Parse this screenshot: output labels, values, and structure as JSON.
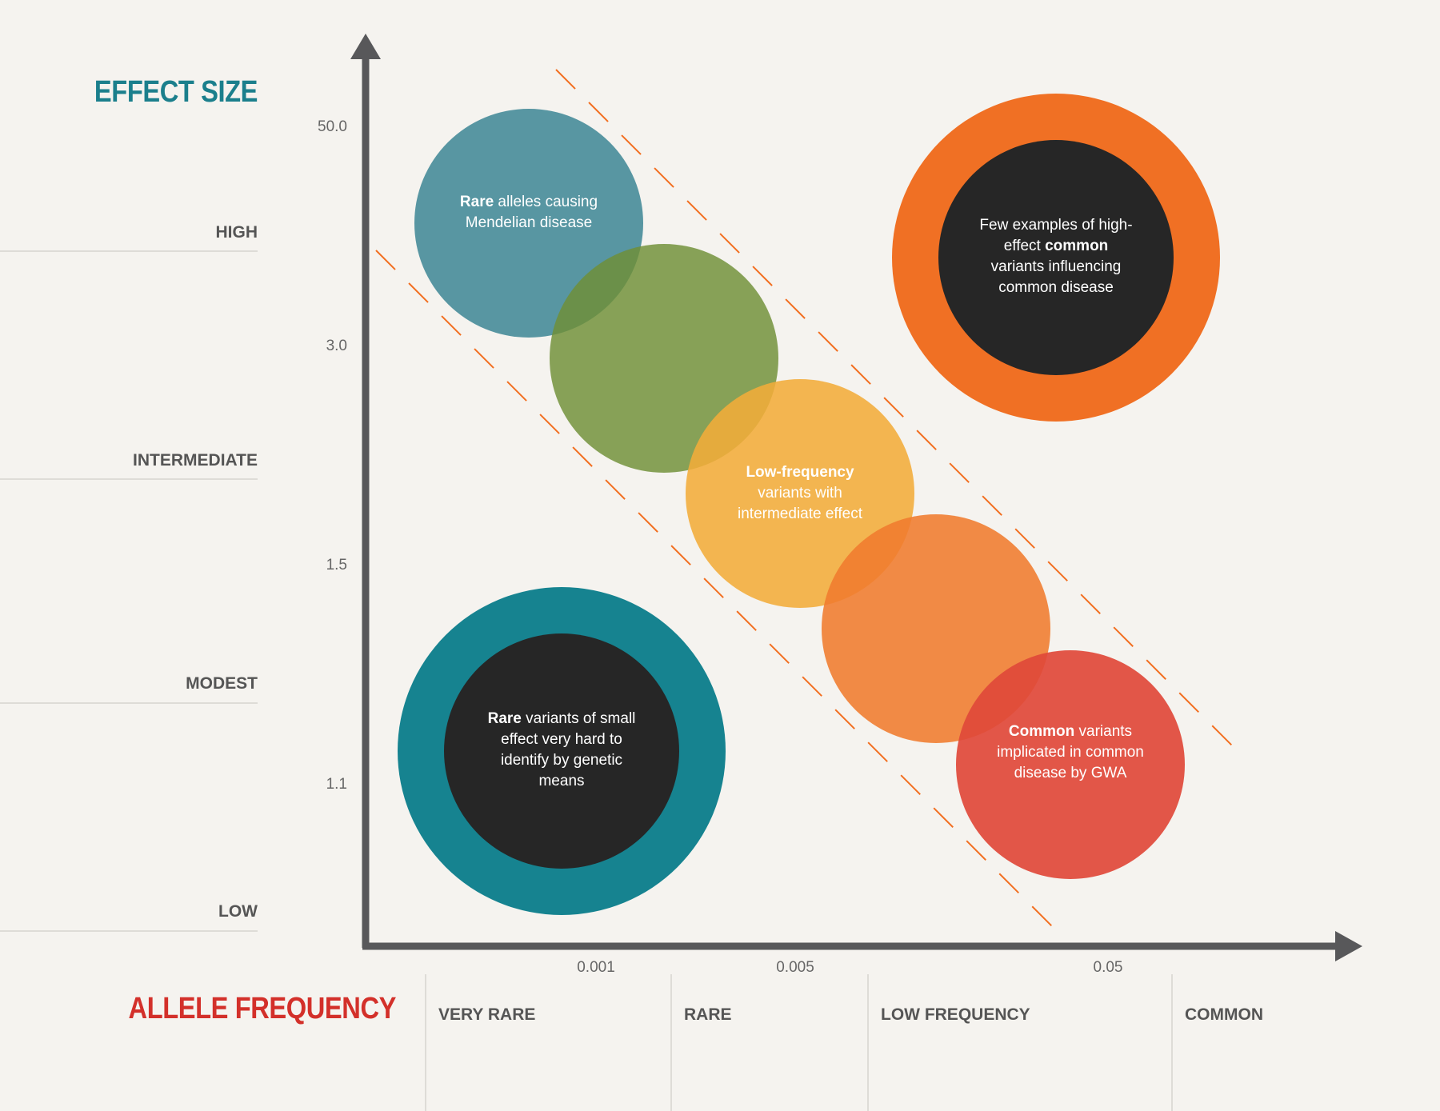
{
  "effect_size_title": "EFFECT SIZE",
  "allele_frequency_title": "ALLELE FREQUENCY",
  "effect_levels": [
    "HIGH",
    "INTERMEDIATE",
    "MODEST",
    "LOW"
  ],
  "y_ticks": [
    "50.0",
    "3.0",
    "1.5",
    "1.1"
  ],
  "x_ticks": [
    "0.001",
    "0.005",
    "0.05"
  ],
  "frequency_categories": [
    "VERY RARE",
    "RARE",
    "LOW FREQUENCY",
    "COMMON"
  ],
  "colors": {
    "teal_title": "#1b7f8c",
    "red_title": "#d3302a",
    "axis": "#58585a",
    "dash": "#f26f21",
    "rare_mendelian": "#3c8594",
    "green": "#6f8f36",
    "low_frequency": "#f2ac3a",
    "orange": "#f07b2d",
    "common": "#e0493a",
    "orange_ring": "#f07024",
    "teal_ring": "#168390",
    "dark": "#262626"
  },
  "bubbles": {
    "rare_mendelian": {
      "bold": "Rare",
      "text": " alleles causing Mendelian disease"
    },
    "low_frequency": {
      "bold": "Low-frequency",
      "text": " variants with intermediate effect"
    },
    "common_gwa": {
      "bold": "Common",
      "text": " variants implicated in common disease by GWA"
    },
    "few_common_pre": "Few examples of high-effect ",
    "few_common_bold": "common",
    "few_common_post": " variants influencing common disease",
    "rare_small": {
      "bold": "Rare",
      "text": " variants of small effect very hard to identify by genetic means"
    }
  }
}
